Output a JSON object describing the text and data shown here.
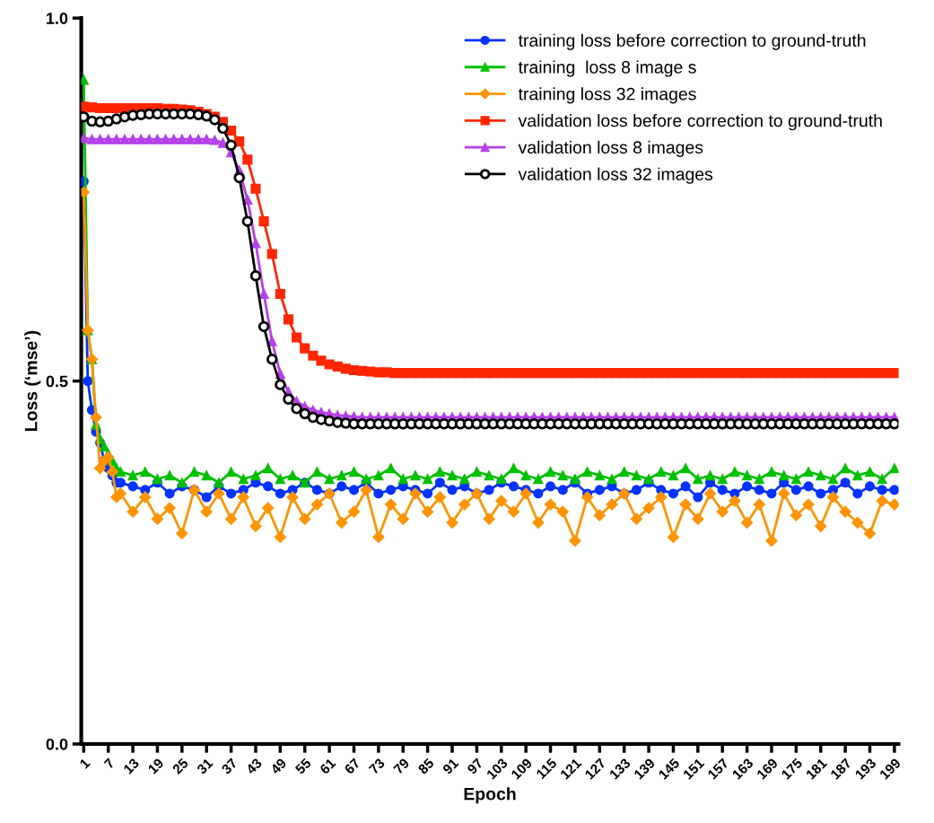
{
  "chart_data": {
    "type": "line",
    "xlabel": "Epoch",
    "ylabel": "Loss (‘mse’)",
    "xlim": [
      0.4,
      200
    ],
    "ylim": [
      0,
      1
    ],
    "xticks": [
      1,
      7,
      13,
      19,
      25,
      31,
      37,
      43,
      49,
      55,
      61,
      67,
      73,
      79,
      85,
      91,
      97,
      103,
      109,
      115,
      121,
      127,
      133,
      139,
      145,
      151,
      157,
      163,
      169,
      175,
      181,
      187,
      193,
      199
    ],
    "yticks": [
      {
        "value": 0,
        "label": "0.0"
      },
      {
        "value": 0.5,
        "label": "0.5"
      },
      {
        "value": 1,
        "label": "1.0"
      }
    ],
    "grid": false,
    "legend": "top right",
    "line_style": "solid",
    "x": [
      1,
      3,
      5,
      7,
      9,
      11,
      13,
      15,
      17,
      19,
      21,
      23,
      25,
      27,
      29,
      31,
      33,
      35,
      37,
      39,
      41,
      43,
      45,
      47,
      49,
      51,
      53,
      55,
      57,
      59,
      61,
      63,
      65,
      67,
      69,
      71,
      73,
      75,
      77,
      79,
      81,
      83,
      85,
      87,
      89,
      91,
      93,
      95,
      97,
      99,
      101,
      103,
      105,
      107,
      109,
      111,
      113,
      115,
      117,
      119,
      121,
      123,
      125,
      127,
      129,
      131,
      133,
      135,
      137,
      139,
      141,
      143,
      145,
      147,
      149,
      151,
      153,
      155,
      157,
      159,
      161,
      163,
      165,
      167,
      169,
      171,
      173,
      175,
      177,
      179,
      181,
      183,
      185,
      187,
      189,
      191,
      193,
      195,
      197,
      199
    ],
    "series": [
      {
        "name": "training loss before correction to ground-truth",
        "color": "#0433ff",
        "marker": "circle",
        "x": [
          1,
          2,
          3,
          4,
          5,
          6,
          7,
          8,
          9,
          10,
          13,
          16,
          19,
          22,
          25,
          28,
          31,
          34,
          37,
          40,
          43,
          46,
          49,
          52,
          55,
          58,
          61,
          64,
          67,
          70,
          73,
          76,
          79,
          82,
          85,
          88,
          91,
          94,
          97,
          100,
          103,
          106,
          109,
          112,
          115,
          118,
          121,
          124,
          127,
          130,
          133,
          136,
          139,
          142,
          145,
          148,
          151,
          154,
          157,
          160,
          163,
          166,
          169,
          172,
          175,
          178,
          181,
          184,
          187,
          190,
          193,
          196,
          199
        ],
        "values": [
          0.775,
          0.5,
          0.46,
          0.43,
          0.415,
          0.39,
          0.38,
          0.37,
          0.36,
          0.36,
          0.355,
          0.35,
          0.36,
          0.345,
          0.355,
          0.35,
          0.34,
          0.355,
          0.345,
          0.35,
          0.36,
          0.355,
          0.345,
          0.35,
          0.36,
          0.35,
          0.345,
          0.355,
          0.35,
          0.36,
          0.345,
          0.35,
          0.355,
          0.35,
          0.345,
          0.36,
          0.35,
          0.355,
          0.345,
          0.35,
          0.36,
          0.355,
          0.35,
          0.345,
          0.355,
          0.35,
          0.36,
          0.345,
          0.35,
          0.355,
          0.345,
          0.35,
          0.36,
          0.35,
          0.345,
          0.355,
          0.34,
          0.36,
          0.35,
          0.345,
          0.355,
          0.35,
          0.345,
          0.36,
          0.35,
          0.355,
          0.345,
          0.35,
          0.36,
          0.345,
          0.355,
          0.35,
          0.35
        ]
      },
      {
        "name": "training  loss 8 image s",
        "color": "#00c000",
        "marker": "triangle",
        "x": [
          1,
          2,
          3,
          4,
          5,
          6,
          7,
          8,
          9,
          10,
          13,
          16,
          19,
          22,
          25,
          28,
          31,
          34,
          37,
          40,
          43,
          46,
          49,
          52,
          55,
          58,
          61,
          64,
          67,
          70,
          73,
          76,
          79,
          82,
          85,
          88,
          91,
          94,
          97,
          100,
          103,
          106,
          109,
          112,
          115,
          118,
          121,
          124,
          127,
          130,
          133,
          136,
          139,
          142,
          145,
          148,
          151,
          154,
          157,
          160,
          163,
          166,
          169,
          172,
          175,
          178,
          181,
          184,
          187,
          190,
          193,
          196,
          199
        ],
        "values": [
          0.915,
          0.57,
          0.53,
          0.44,
          0.42,
          0.41,
          0.4,
          0.39,
          0.38,
          0.375,
          0.37,
          0.375,
          0.365,
          0.37,
          0.36,
          0.375,
          0.37,
          0.36,
          0.375,
          0.365,
          0.37,
          0.38,
          0.365,
          0.37,
          0.36,
          0.375,
          0.365,
          0.37,
          0.375,
          0.365,
          0.37,
          0.38,
          0.365,
          0.37,
          0.365,
          0.375,
          0.37,
          0.365,
          0.375,
          0.37,
          0.365,
          0.38,
          0.37,
          0.365,
          0.375,
          0.37,
          0.365,
          0.375,
          0.37,
          0.365,
          0.375,
          0.37,
          0.365,
          0.375,
          0.37,
          0.38,
          0.365,
          0.37,
          0.365,
          0.375,
          0.37,
          0.365,
          0.375,
          0.37,
          0.365,
          0.375,
          0.37,
          0.365,
          0.38,
          0.37,
          0.375,
          0.365,
          0.38
        ]
      },
      {
        "name": "training loss 32 images",
        "color": "#ff9300",
        "marker": "diamond",
        "x": [
          1,
          2,
          3,
          4,
          5,
          6,
          7,
          8,
          9,
          10,
          13,
          16,
          19,
          22,
          25,
          28,
          31,
          34,
          37,
          40,
          43,
          46,
          49,
          52,
          55,
          58,
          61,
          64,
          67,
          70,
          73,
          76,
          79,
          82,
          85,
          88,
          91,
          94,
          97,
          100,
          103,
          106,
          109,
          112,
          115,
          118,
          121,
          124,
          127,
          130,
          133,
          136,
          139,
          142,
          145,
          148,
          151,
          154,
          157,
          160,
          163,
          166,
          169,
          172,
          175,
          178,
          181,
          184,
          187,
          190,
          193,
          196,
          199
        ],
        "values": [
          0.76,
          0.57,
          0.53,
          0.45,
          0.38,
          0.39,
          0.395,
          0.375,
          0.34,
          0.345,
          0.32,
          0.34,
          0.31,
          0.325,
          0.29,
          0.35,
          0.32,
          0.345,
          0.31,
          0.34,
          0.3,
          0.325,
          0.285,
          0.34,
          0.31,
          0.33,
          0.345,
          0.305,
          0.32,
          0.35,
          0.285,
          0.33,
          0.31,
          0.345,
          0.32,
          0.34,
          0.305,
          0.33,
          0.345,
          0.31,
          0.335,
          0.32,
          0.345,
          0.305,
          0.33,
          0.32,
          0.28,
          0.34,
          0.315,
          0.33,
          0.345,
          0.31,
          0.325,
          0.34,
          0.285,
          0.33,
          0.31,
          0.345,
          0.32,
          0.335,
          0.305,
          0.33,
          0.28,
          0.345,
          0.315,
          0.33,
          0.3,
          0.34,
          0.32,
          0.305,
          0.29,
          0.335,
          0.33
        ]
      },
      {
        "name": "validation loss before correction to ground-truth",
        "color": "#ff2600",
        "marker": "square",
        "values": [
          0.878,
          0.877,
          0.876,
          0.876,
          0.876,
          0.876,
          0.876,
          0.876,
          0.876,
          0.876,
          0.875,
          0.875,
          0.874,
          0.873,
          0.871,
          0.868,
          0.864,
          0.857,
          0.845,
          0.83,
          0.805,
          0.765,
          0.72,
          0.675,
          0.62,
          0.585,
          0.56,
          0.545,
          0.535,
          0.528,
          0.523,
          0.52,
          0.517,
          0.515,
          0.514,
          0.513,
          0.512,
          0.512,
          0.511,
          0.511,
          0.511,
          0.511,
          0.511,
          0.511,
          0.511,
          0.511,
          0.511,
          0.511,
          0.511,
          0.511,
          0.511,
          0.511,
          0.511,
          0.511,
          0.511,
          0.511,
          0.511,
          0.511,
          0.511,
          0.511,
          0.511,
          0.511,
          0.511,
          0.511,
          0.511,
          0.511,
          0.511,
          0.511,
          0.511,
          0.511,
          0.511,
          0.511,
          0.511,
          0.511,
          0.511,
          0.511,
          0.511,
          0.511,
          0.511,
          0.511,
          0.511,
          0.511,
          0.511,
          0.511,
          0.511,
          0.511,
          0.511,
          0.511,
          0.511,
          0.511,
          0.511,
          0.511,
          0.511,
          0.511,
          0.511,
          0.511,
          0.511,
          0.511,
          0.511,
          0.511
        ]
      },
      {
        "name": "validation loss 8 images",
        "color": "#b440e8",
        "marker": "triangle",
        "values": [
          0.835,
          0.833,
          0.833,
          0.833,
          0.833,
          0.833,
          0.833,
          0.833,
          0.833,
          0.833,
          0.833,
          0.833,
          0.833,
          0.833,
          0.833,
          0.833,
          0.832,
          0.828,
          0.815,
          0.79,
          0.75,
          0.69,
          0.62,
          0.555,
          0.51,
          0.485,
          0.472,
          0.465,
          0.46,
          0.457,
          0.455,
          0.453,
          0.452,
          0.451,
          0.45,
          0.45,
          0.45,
          0.45,
          0.45,
          0.45,
          0.45,
          0.45,
          0.45,
          0.45,
          0.45,
          0.45,
          0.45,
          0.45,
          0.45,
          0.45,
          0.45,
          0.45,
          0.45,
          0.45,
          0.45,
          0.45,
          0.45,
          0.45,
          0.45,
          0.45,
          0.45,
          0.45,
          0.45,
          0.45,
          0.45,
          0.45,
          0.45,
          0.45,
          0.45,
          0.45,
          0.45,
          0.45,
          0.45,
          0.45,
          0.45,
          0.45,
          0.45,
          0.45,
          0.45,
          0.45,
          0.45,
          0.45,
          0.45,
          0.45,
          0.45,
          0.45,
          0.45,
          0.45,
          0.45,
          0.45,
          0.45,
          0.45,
          0.45,
          0.45,
          0.45,
          0.45,
          0.45,
          0.45,
          0.45,
          0.45
        ]
      },
      {
        "name": "validation loss 32 images",
        "color": "#000000",
        "marker": "circle",
        "values": [
          0.864,
          0.858,
          0.857,
          0.858,
          0.861,
          0.864,
          0.866,
          0.867,
          0.868,
          0.868,
          0.868,
          0.868,
          0.868,
          0.868,
          0.867,
          0.865,
          0.86,
          0.848,
          0.825,
          0.78,
          0.72,
          0.645,
          0.575,
          0.53,
          0.495,
          0.475,
          0.462,
          0.455,
          0.45,
          0.447,
          0.445,
          0.443,
          0.442,
          0.441,
          0.441,
          0.441,
          0.441,
          0.441,
          0.441,
          0.441,
          0.441,
          0.441,
          0.441,
          0.441,
          0.441,
          0.441,
          0.441,
          0.441,
          0.441,
          0.441,
          0.441,
          0.441,
          0.441,
          0.441,
          0.441,
          0.441,
          0.441,
          0.441,
          0.441,
          0.441,
          0.441,
          0.441,
          0.441,
          0.441,
          0.441,
          0.441,
          0.441,
          0.441,
          0.441,
          0.441,
          0.441,
          0.441,
          0.441,
          0.441,
          0.441,
          0.441,
          0.441,
          0.441,
          0.441,
          0.441,
          0.441,
          0.441,
          0.441,
          0.441,
          0.441,
          0.441,
          0.441,
          0.441,
          0.441,
          0.441,
          0.441,
          0.441,
          0.441,
          0.441,
          0.441,
          0.441,
          0.441,
          0.441,
          0.441,
          0.441
        ]
      }
    ]
  }
}
